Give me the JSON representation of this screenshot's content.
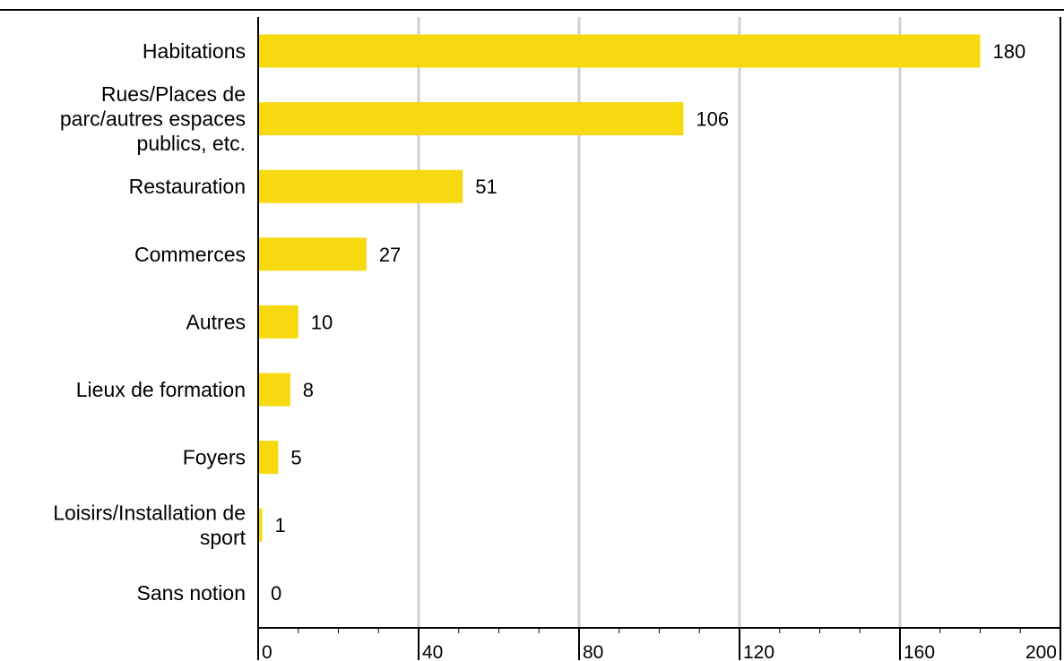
{
  "chart_data": {
    "type": "bar",
    "orientation": "horizontal",
    "categories": [
      "Habitations",
      "Rues/Places de parc/autres espaces publics, etc.",
      "Restauration",
      "Commerces",
      "Autres",
      "Lieux de formation",
      "Foyers",
      "Loisirs/Installation de sport",
      "Sans notion"
    ],
    "category_lines": [
      [
        "Habitations"
      ],
      [
        "Rues/Places de",
        "parc/autres espaces",
        "publics, etc."
      ],
      [
        "Restauration"
      ],
      [
        "Commerces"
      ],
      [
        "Autres"
      ],
      [
        "Lieux de formation"
      ],
      [
        "Foyers"
      ],
      [
        "Loisirs/Installation de",
        "sport"
      ],
      [
        "Sans notion"
      ]
    ],
    "values": [
      180,
      106,
      51,
      27,
      10,
      8,
      5,
      1,
      0
    ],
    "value_labels": [
      "180",
      "106",
      "51",
      "27",
      "10",
      "8",
      "5",
      "1",
      "0"
    ],
    "xlim": [
      0,
      200
    ],
    "xticks": [
      0,
      40,
      80,
      120,
      160,
      200
    ],
    "xtick_labels": [
      "0",
      "40",
      "80",
      "120",
      "160",
      "200"
    ],
    "minor_tick_step": 10,
    "grid": true,
    "bar_color": "#f7d90f",
    "grid_color": "#d0d0d0"
  }
}
